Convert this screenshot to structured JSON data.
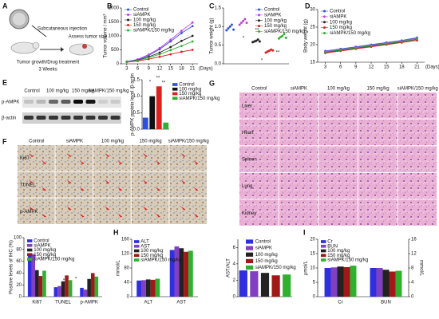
{
  "schematic": {
    "label": "A",
    "texts": [
      "Subcutaneous injection",
      "Assess tumor size",
      "Tumor growth/Drug treatment",
      "3 Weeks"
    ]
  },
  "blot": {
    "label": "E",
    "columns": [
      "Control",
      "100 mg/kg",
      "150 mg/kg",
      "siAMPK/150 mg/kg"
    ],
    "rows": [
      "p-AMPK",
      "β-actin"
    ]
  },
  "ihc": {
    "label": "F",
    "columns": [
      "Control",
      "siAMPK",
      "100 mg/kg",
      "150 mg/kg",
      "siAMPK/150 mg/kg"
    ],
    "rows": [
      "Ki67",
      "TUNEL",
      "p-AMPK"
    ]
  },
  "he": {
    "label": "G",
    "columns": [
      "Control",
      "siAMPK",
      "100 mg/kg",
      "150 mg/kg",
      "siAMPK/150 mg/kg"
    ],
    "rows": [
      "Liver",
      "Heart",
      "Spleen",
      "Lung",
      "Kidney"
    ]
  },
  "chart_data": [
    {
      "type": "line",
      "label": "B",
      "ylabel": "Tumor volume / mm³",
      "x_unit": "(Days)",
      "x": [
        3,
        6,
        9,
        12,
        15,
        18,
        21
      ],
      "xlim": [
        1.5,
        22.5
      ],
      "xticks": [
        3,
        6,
        9,
        12,
        15,
        18,
        21
      ],
      "ylim": [
        0,
        2000
      ],
      "yticks": [
        0,
        500,
        1000,
        1500,
        2000
      ],
      "series": [
        {
          "name": "Control",
          "color": "#2f4fe0",
          "values": [
            80,
            150,
            300,
            520,
            800,
            1100,
            1350
          ]
        },
        {
          "name": "siAMPK",
          "color": "#c040e0",
          "values": [
            80,
            160,
            330,
            560,
            860,
            1180,
            1480
          ]
        },
        {
          "name": "100 mg/kg",
          "color": "#222222",
          "values": [
            70,
            130,
            250,
            400,
            600,
            820,
            1000
          ]
        },
        {
          "name": "150 mg/kg",
          "color": "#e02020",
          "values": [
            60,
            100,
            170,
            250,
            340,
            430,
            500
          ]
        },
        {
          "name": "siAMPK/150 mg/kg",
          "color": "#2fb02f",
          "values": [
            70,
            120,
            220,
            340,
            490,
            640,
            800
          ]
        }
      ]
    },
    {
      "type": "strip",
      "label": "C",
      "ylabel": "Tumor weight (g)",
      "ylim": [
        0,
        1.5
      ],
      "yticks": [
        {
          "value": 0,
          "label": "0.0"
        },
        {
          "value": 0.5,
          "label": "0.5"
        },
        {
          "value": 1,
          "label": "1.0"
        },
        {
          "value": 1.5,
          "label": "1.5"
        }
      ],
      "annotations": [
        "*",
        "**",
        "*",
        "**"
      ],
      "series": [
        {
          "name": "Control",
          "color": "#2f4fe0",
          "values": [
            0.9,
            0.95,
            1.0,
            1.05,
            0.92
          ]
        },
        {
          "name": "siAMPK",
          "color": "#c040e0",
          "values": [
            1.05,
            1.1,
            1.15,
            1.2,
            1.1
          ]
        },
        {
          "name": "100 mg/kg",
          "color": "#222222",
          "values": [
            0.58,
            0.6,
            0.62,
            0.65,
            0.6
          ]
        },
        {
          "name": "150 mg/kg",
          "color": "#e02020",
          "values": [
            0.3,
            0.33,
            0.35,
            0.38,
            0.36
          ]
        },
        {
          "name": "siAMPK/150 mg/kg",
          "color": "#2fb02f",
          "values": [
            0.68,
            0.72,
            0.75,
            0.8,
            0.7
          ]
        }
      ]
    },
    {
      "type": "line",
      "label": "D",
      "ylabel": "Body weight (g)",
      "x_unit": "(Days)",
      "x": [
        3,
        6,
        9,
        12,
        15,
        18,
        21
      ],
      "xlim": [
        1.5,
        22.5
      ],
      "xticks": [
        3,
        6,
        9,
        12,
        15,
        18,
        21
      ],
      "ylim": [
        15,
        30
      ],
      "yticks": [
        15,
        20,
        25,
        30
      ],
      "series": [
        {
          "name": "Control",
          "color": "#2f4fe0",
          "values": [
            18.2,
            18.8,
            19.4,
            20,
            20.6,
            21.2,
            22
          ]
        },
        {
          "name": "siAMPK",
          "color": "#c040e0",
          "values": [
            18,
            18.6,
            19.2,
            19.8,
            20.4,
            21,
            21.8
          ]
        },
        {
          "name": "100 mg/kg",
          "color": "#222222",
          "values": [
            17.8,
            18.4,
            19,
            19.6,
            20.2,
            20.8,
            21.5
          ]
        },
        {
          "name": "150 mg/kg",
          "color": "#e02020",
          "values": [
            17.6,
            18.2,
            18.8,
            19.4,
            20,
            20.6,
            21.2
          ]
        },
        {
          "name": "siAMPK/150 mg/kg",
          "color": "#2fb02f",
          "values": [
            17.9,
            18.5,
            19.1,
            19.7,
            20.3,
            20.9,
            21.6
          ]
        }
      ]
    },
    {
      "type": "bar",
      "ylabel": "p-AMPK protein level /β-actin",
      "ylim": [
        0,
        1.5
      ],
      "yticks": [
        {
          "value": 0,
          "label": "0.0"
        },
        {
          "value": 0.5,
          "label": "0.5"
        },
        {
          "value": 1,
          "label": "1.0"
        },
        {
          "value": 1.5,
          "label": "1.5"
        }
      ],
      "annotations": [
        "*",
        "**",
        "**"
      ],
      "categories": [
        "Control",
        "100 mg/kg",
        "150 mg/kg",
        "siAMPK/150 mg/kg"
      ],
      "colors": [
        "#2f4fe0",
        "#111111",
        "#e02020",
        "#2fb02f"
      ],
      "values": [
        0.35,
        1.0,
        1.3,
        0.2
      ]
    },
    {
      "type": "grouped",
      "ylabel": "Positive levels of IHC (%)",
      "ylim": [
        0,
        100
      ],
      "yticks": [
        0,
        20,
        40,
        60,
        80,
        100
      ],
      "annotations": [
        "*",
        "*",
        "*",
        "*",
        "*",
        "*"
      ],
      "categories": [
        "Ki67",
        "TUNEL",
        "p-AMPK"
      ],
      "series": [
        {
          "name": "Control",
          "color": "#2f2fe0",
          "values": [
            70,
            16,
            15
          ]
        },
        {
          "name": "siAMPK",
          "color": "#8040c0",
          "values": [
            72,
            18,
            12
          ]
        },
        {
          "name": "100 mg/kg",
          "color": "#222222",
          "values": [
            45,
            26,
            30
          ]
        },
        {
          "name": "150 mg/kg",
          "color": "#a01818",
          "values": [
            35,
            36,
            40
          ]
        },
        {
          "name": "siAMPK/150 mg/kg",
          "color": "#2fb02f",
          "values": [
            44,
            28,
            34
          ]
        }
      ]
    },
    {
      "type": "grouped",
      "label": "H",
      "ylabel": "mmol/L",
      "ylim": [
        0,
        160
      ],
      "yticks": [
        0,
        40,
        80,
        120,
        160
      ],
      "categories": [
        "ALT",
        "AST"
      ],
      "series": [
        {
          "name": "ALT",
          "color": "#2f2fe0",
          "values": [
            45,
            130
          ]
        },
        {
          "name": "AST",
          "color": "#8040c0",
          "values": [
            46,
            140
          ]
        },
        {
          "name": "100 mg/kg",
          "color": "#222222",
          "values": [
            48,
            135
          ]
        },
        {
          "name": "150 mg/kg",
          "color": "#a01818",
          "values": [
            47,
            125
          ]
        },
        {
          "name": "siAMPK/150 mg/kg",
          "color": "#2fb02f",
          "values": [
            50,
            128
          ]
        }
      ]
    },
    {
      "type": "bar",
      "ylabel": "AST/ALT",
      "ylim": [
        0,
        7
      ],
      "yticks": [
        0,
        2,
        4,
        6
      ],
      "categories": [
        "Control",
        "siAMPK",
        "100 mg/kg",
        "150 mg/kg",
        "siAMPK/150 mg/kg"
      ],
      "colors": [
        "#2f2fe0",
        "#8040c0",
        "#222222",
        "#a01818",
        "#2fb02f"
      ],
      "values": [
        3.2,
        3.1,
        2.9,
        2.6,
        2.7
      ]
    },
    {
      "type": "grouped",
      "label": "I",
      "ylabel": "μmol/L",
      "y2label": "mmol/L",
      "ylim": [
        0,
        20
      ],
      "yticks": [
        0,
        5,
        10,
        15,
        20
      ],
      "y2lim": [
        0,
        16
      ],
      "y2ticks": [
        0,
        4,
        8,
        12,
        16
      ],
      "categories": [
        "Cr",
        "BUN"
      ],
      "category_axes": [
        "y",
        "y2"
      ],
      "series": [
        {
          "name": "Cr",
          "color": "#2f2fe0",
          "values": [
            10,
            8
          ]
        },
        {
          "name": "BUN",
          "color": "#8040c0",
          "values": [
            10.2,
            8
          ]
        },
        {
          "name": "100 mg/kg",
          "color": "#222222",
          "values": [
            10.5,
            7.5
          ]
        },
        {
          "name": "150 mg/kg",
          "color": "#a01818",
          "values": [
            10.3,
            7
          ]
        },
        {
          "name": "siAMPK/150 mg/kg",
          "color": "#2fb02f",
          "values": [
            10.8,
            7.2
          ]
        }
      ]
    }
  ]
}
